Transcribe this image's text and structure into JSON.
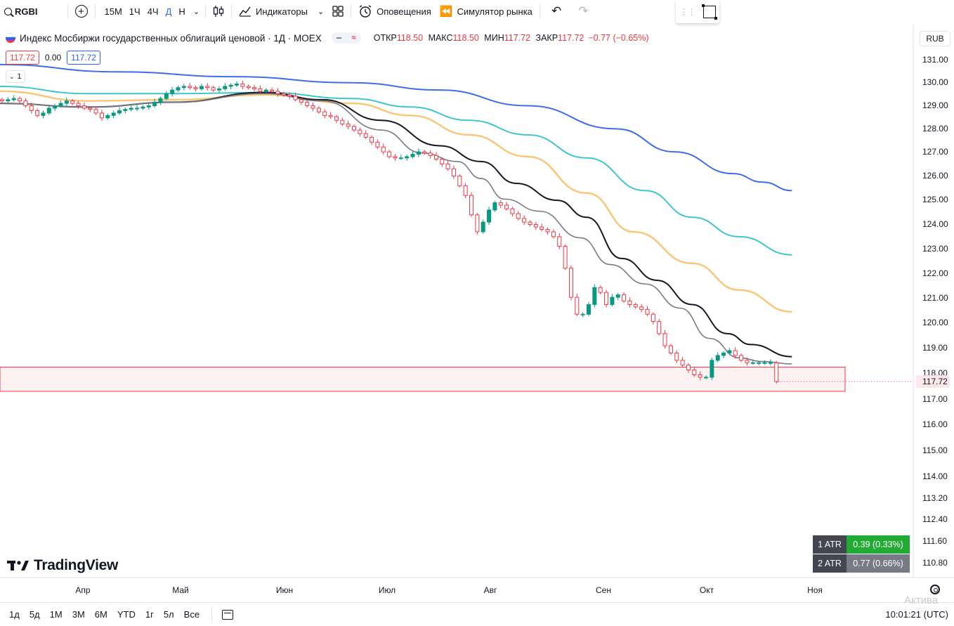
{
  "toolbar": {
    "symbol": "RGBI",
    "intervals": [
      "15М",
      "1Ч",
      "4Ч",
      "Д",
      "Н"
    ],
    "active_interval": "Д",
    "indicators_label": "Индикаторы",
    "alerts_label": "Оповещения",
    "replay_label": "Симулятор рынка"
  },
  "legend": {
    "title": "Индекс Мосбиржи государственных облигаций ценовой · 1Д · MOEX",
    "open_label": "ОТКР",
    "open": "118.50",
    "high_label": "МАКС",
    "high": "118.50",
    "low_label": "МИН",
    "low": "117.72",
    "close_label": "ЗАКР",
    "close": "117.72",
    "change": "−0.77 (−0.65%)",
    "bid": "117.72",
    "spread": "0.00",
    "ask": "117.72",
    "indicator_count": "1"
  },
  "currency": "RUB",
  "atr": [
    {
      "label": "1 ATR",
      "value": "0.39 (0.33%)"
    },
    {
      "label": "2 ATR",
      "value": "0.77 (0.66%)"
    }
  ],
  "logo": "TradingView",
  "bottom": {
    "ranges": [
      "1д",
      "5д",
      "1М",
      "3М",
      "6М",
      "YTD",
      "1г",
      "5л",
      "Все"
    ],
    "clock": "10:01:21 (UTC)",
    "watermark": "Актива"
  },
  "colors": {
    "up": "#089981",
    "down": "#f23645",
    "ma_blue": "#3d6ee8",
    "ma_teal": "#3fc6c9",
    "ma_orange": "#f8c77a",
    "ma_black": "#131722",
    "ma_gray": "#787b86"
  },
  "chart_data": {
    "type": "candlestick",
    "x_tick_labels": [
      "Апр",
      "Май",
      "Июн",
      "Июл",
      "Авг",
      "Сен",
      "Окт",
      "Ноя"
    ],
    "y_tick_labels": [
      "131.00",
      "130.00",
      "129.00",
      "128.00",
      "127.00",
      "126.00",
      "125.00",
      "124.00",
      "123.00",
      "122.00",
      "121.00",
      "120.00",
      "119.00",
      "118.00",
      "117.00",
      "116.00",
      "115.00",
      "114.00",
      "113.20",
      "112.40",
      "111.60",
      "110.80"
    ],
    "y_range": [
      110.3,
      131.6
    ],
    "last_price_label": "117.72",
    "highlight_zone": [
      117.32,
      118.32
    ],
    "closes": [
      129.3,
      129.35,
      129.4,
      129.3,
      129.1,
      128.9,
      128.7,
      128.8,
      129.0,
      129.1,
      129.2,
      129.3,
      129.2,
      129.1,
      129.0,
      128.95,
      128.8,
      128.6,
      128.7,
      128.8,
      128.9,
      128.95,
      129.0,
      129.0,
      129.05,
      129.1,
      129.25,
      129.4,
      129.6,
      129.75,
      129.85,
      129.9,
      129.85,
      129.8,
      129.9,
      129.85,
      129.75,
      129.8,
      129.9,
      129.95,
      130.0,
      129.9,
      129.85,
      129.8,
      129.7,
      129.75,
      129.7,
      129.6,
      129.55,
      129.5,
      129.35,
      129.25,
      129.1,
      129.0,
      128.85,
      128.7,
      128.65,
      128.5,
      128.35,
      128.25,
      128.1,
      127.95,
      127.8,
      127.6,
      127.4,
      127.2,
      127.0,
      126.95,
      126.95,
      127.0,
      127.1,
      127.2,
      127.15,
      127.05,
      126.9,
      126.7,
      126.5,
      126.2,
      125.8,
      125.4,
      124.6,
      123.9,
      124.3,
      124.8,
      125.1,
      125.0,
      124.85,
      124.65,
      124.45,
      124.3,
      124.2,
      124.1,
      124.0,
      123.9,
      123.7,
      123.3,
      122.4,
      121.2,
      120.5,
      120.5,
      120.9,
      121.6,
      121.4,
      120.9,
      121.2,
      121.3,
      121.05,
      120.9,
      120.8,
      120.7,
      120.5,
      120.2,
      119.7,
      119.2,
      118.9,
      118.6,
      118.4,
      118.2,
      118.0,
      117.9,
      117.9,
      118.6,
      118.8,
      118.9,
      119.0,
      118.8,
      118.6,
      118.5,
      118.5,
      118.5,
      118.5,
      118.5,
      117.72
    ],
    "ma_values": {
      "blue": [
        [
          0,
          130.8
        ],
        [
          20,
          130.5
        ],
        [
          40,
          130.3
        ],
        [
          60,
          130.05
        ],
        [
          75,
          129.75
        ],
        [
          90,
          129.1
        ],
        [
          105,
          128.15
        ],
        [
          115,
          127.2
        ],
        [
          125,
          126.3
        ],
        [
          130,
          125.95
        ],
        [
          135,
          125.6
        ]
      ],
      "teal": [
        [
          0,
          129.9
        ],
        [
          15,
          129.6
        ],
        [
          30,
          129.6
        ],
        [
          45,
          129.65
        ],
        [
          60,
          129.4
        ],
        [
          70,
          129.05
        ],
        [
          80,
          128.5
        ],
        [
          90,
          127.9
        ],
        [
          100,
          126.95
        ],
        [
          110,
          125.6
        ],
        [
          118,
          124.5
        ],
        [
          126,
          123.7
        ],
        [
          135,
          122.95
        ]
      ],
      "orange": [
        [
          0,
          129.7
        ],
        [
          15,
          129.3
        ],
        [
          30,
          129.35
        ],
        [
          45,
          129.55
        ],
        [
          60,
          129.2
        ],
        [
          70,
          128.7
        ],
        [
          80,
          127.9
        ],
        [
          90,
          127.0
        ],
        [
          100,
          125.5
        ],
        [
          108,
          123.9
        ],
        [
          118,
          122.6
        ],
        [
          126,
          121.5
        ],
        [
          135,
          120.6
        ]
      ],
      "black": [
        [
          0,
          129.2
        ],
        [
          15,
          129.05
        ],
        [
          30,
          129.25
        ],
        [
          45,
          129.65
        ],
        [
          55,
          129.35
        ],
        [
          65,
          128.5
        ],
        [
          75,
          127.45
        ],
        [
          82,
          126.8
        ],
        [
          88,
          125.9
        ],
        [
          95,
          125.2
        ],
        [
          100,
          124.5
        ],
        [
          106,
          122.8
        ],
        [
          112,
          121.9
        ],
        [
          118,
          120.9
        ],
        [
          124,
          119.7
        ],
        [
          128,
          119.25
        ],
        [
          135,
          118.75
        ]
      ],
      "gray": [
        [
          0,
          129.2
        ],
        [
          15,
          129.05
        ],
        [
          30,
          129.25
        ],
        [
          45,
          129.6
        ],
        [
          55,
          129.3
        ],
        [
          65,
          128.1
        ],
        [
          72,
          127.15
        ],
        [
          78,
          126.8
        ],
        [
          82,
          126.1
        ],
        [
          86,
          125.25
        ],
        [
          92,
          124.75
        ],
        [
          99,
          123.65
        ],
        [
          104,
          122.55
        ],
        [
          110,
          121.75
        ],
        [
          116,
          120.75
        ],
        [
          121,
          119.5
        ],
        [
          126,
          118.7
        ],
        [
          130,
          118.55
        ],
        [
          135,
          118.45
        ]
      ]
    }
  }
}
